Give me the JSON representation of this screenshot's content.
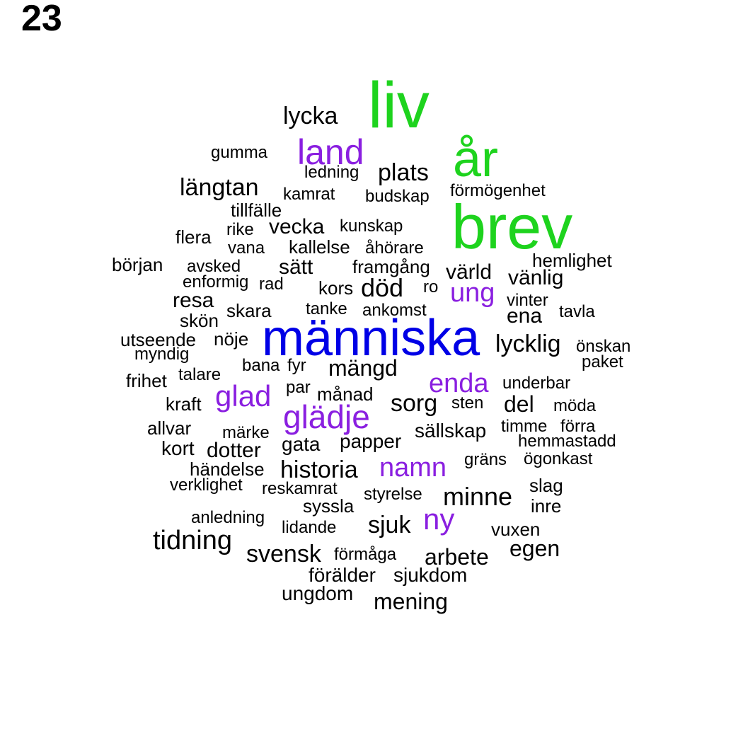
{
  "page_number": "23",
  "colors": {
    "largest": "#1ed31e",
    "top": "#0000e6",
    "purple": "#8a1fe0",
    "black": "#000000"
  },
  "words": [
    {
      "text": "liv",
      "color": "largest"
    },
    {
      "text": "år",
      "color": "largest"
    },
    {
      "text": "brev",
      "color": "largest"
    },
    {
      "text": "människa",
      "color": "top"
    },
    {
      "text": "land",
      "color": "purple"
    },
    {
      "text": "ung",
      "color": "purple"
    },
    {
      "text": "enda",
      "color": "purple"
    },
    {
      "text": "glad",
      "color": "purple"
    },
    {
      "text": "glädje",
      "color": "purple"
    },
    {
      "text": "namn",
      "color": "purple"
    },
    {
      "text": "ny",
      "color": "purple"
    },
    {
      "text": "lycka",
      "color": "black"
    },
    {
      "text": "gumma",
      "color": "black"
    },
    {
      "text": "ledning",
      "color": "black"
    },
    {
      "text": "plats",
      "color": "black"
    },
    {
      "text": "längtan",
      "color": "black"
    },
    {
      "text": "kamrat",
      "color": "black"
    },
    {
      "text": "budskap",
      "color": "black"
    },
    {
      "text": "förmögenhet",
      "color": "black"
    },
    {
      "text": "tillfälle",
      "color": "black"
    },
    {
      "text": "kunskap",
      "color": "black"
    },
    {
      "text": "flera",
      "color": "black"
    },
    {
      "text": "rike",
      "color": "black"
    },
    {
      "text": "vecka",
      "color": "black"
    },
    {
      "text": "vana",
      "color": "black"
    },
    {
      "text": "kallelse",
      "color": "black"
    },
    {
      "text": "åhörare",
      "color": "black"
    },
    {
      "text": "hemlighet",
      "color": "black"
    },
    {
      "text": "början",
      "color": "black"
    },
    {
      "text": "avsked",
      "color": "black"
    },
    {
      "text": "sätt",
      "color": "black"
    },
    {
      "text": "framgång",
      "color": "black"
    },
    {
      "text": "värld",
      "color": "black"
    },
    {
      "text": "vänlig",
      "color": "black"
    },
    {
      "text": "enformig",
      "color": "black"
    },
    {
      "text": "rad",
      "color": "black"
    },
    {
      "text": "kors",
      "color": "black"
    },
    {
      "text": "död",
      "color": "black"
    },
    {
      "text": "ro",
      "color": "black"
    },
    {
      "text": "resa",
      "color": "black"
    },
    {
      "text": "vinter",
      "color": "black"
    },
    {
      "text": "skara",
      "color": "black"
    },
    {
      "text": "tanke",
      "color": "black"
    },
    {
      "text": "ankomst",
      "color": "black"
    },
    {
      "text": "tavla",
      "color": "black"
    },
    {
      "text": "ena",
      "color": "black"
    },
    {
      "text": "skön",
      "color": "black"
    },
    {
      "text": "utseende",
      "color": "black"
    },
    {
      "text": "nöje",
      "color": "black"
    },
    {
      "text": "lycklig",
      "color": "black"
    },
    {
      "text": "önskan",
      "color": "black"
    },
    {
      "text": "myndig",
      "color": "black"
    },
    {
      "text": "paket",
      "color": "black"
    },
    {
      "text": "bana",
      "color": "black"
    },
    {
      "text": "fyr",
      "color": "black"
    },
    {
      "text": "mängd",
      "color": "black"
    },
    {
      "text": "talare",
      "color": "black"
    },
    {
      "text": "frihet",
      "color": "black"
    },
    {
      "text": "underbar",
      "color": "black"
    },
    {
      "text": "par",
      "color": "black"
    },
    {
      "text": "månad",
      "color": "black"
    },
    {
      "text": "kraft",
      "color": "black"
    },
    {
      "text": "sorg",
      "color": "black"
    },
    {
      "text": "sten",
      "color": "black"
    },
    {
      "text": "del",
      "color": "black"
    },
    {
      "text": "möda",
      "color": "black"
    },
    {
      "text": "allvar",
      "color": "black"
    },
    {
      "text": "timme",
      "color": "black"
    },
    {
      "text": "förra",
      "color": "black"
    },
    {
      "text": "märke",
      "color": "black"
    },
    {
      "text": "sällskap",
      "color": "black"
    },
    {
      "text": "hemmastadd",
      "color": "black"
    },
    {
      "text": "kort",
      "color": "black"
    },
    {
      "text": "dotter",
      "color": "black"
    },
    {
      "text": "gata",
      "color": "black"
    },
    {
      "text": "papper",
      "color": "black"
    },
    {
      "text": "gräns",
      "color": "black"
    },
    {
      "text": "ögonkast",
      "color": "black"
    },
    {
      "text": "händelse",
      "color": "black"
    },
    {
      "text": "historia",
      "color": "black"
    },
    {
      "text": "verklighet",
      "color": "black"
    },
    {
      "text": "reskamrat",
      "color": "black"
    },
    {
      "text": "slag",
      "color": "black"
    },
    {
      "text": "styrelse",
      "color": "black"
    },
    {
      "text": "minne",
      "color": "black"
    },
    {
      "text": "syssla",
      "color": "black"
    },
    {
      "text": "inre",
      "color": "black"
    },
    {
      "text": "anledning",
      "color": "black"
    },
    {
      "text": "lidande",
      "color": "black"
    },
    {
      "text": "sjuk",
      "color": "black"
    },
    {
      "text": "vuxen",
      "color": "black"
    },
    {
      "text": "tidning",
      "color": "black"
    },
    {
      "text": "egen",
      "color": "black"
    },
    {
      "text": "svensk",
      "color": "black"
    },
    {
      "text": "förmåga",
      "color": "black"
    },
    {
      "text": "arbete",
      "color": "black"
    },
    {
      "text": "förälder",
      "color": "black"
    },
    {
      "text": "sjukdom",
      "color": "black"
    },
    {
      "text": "ungdom",
      "color": "black"
    },
    {
      "text": "mening",
      "color": "black"
    }
  ]
}
